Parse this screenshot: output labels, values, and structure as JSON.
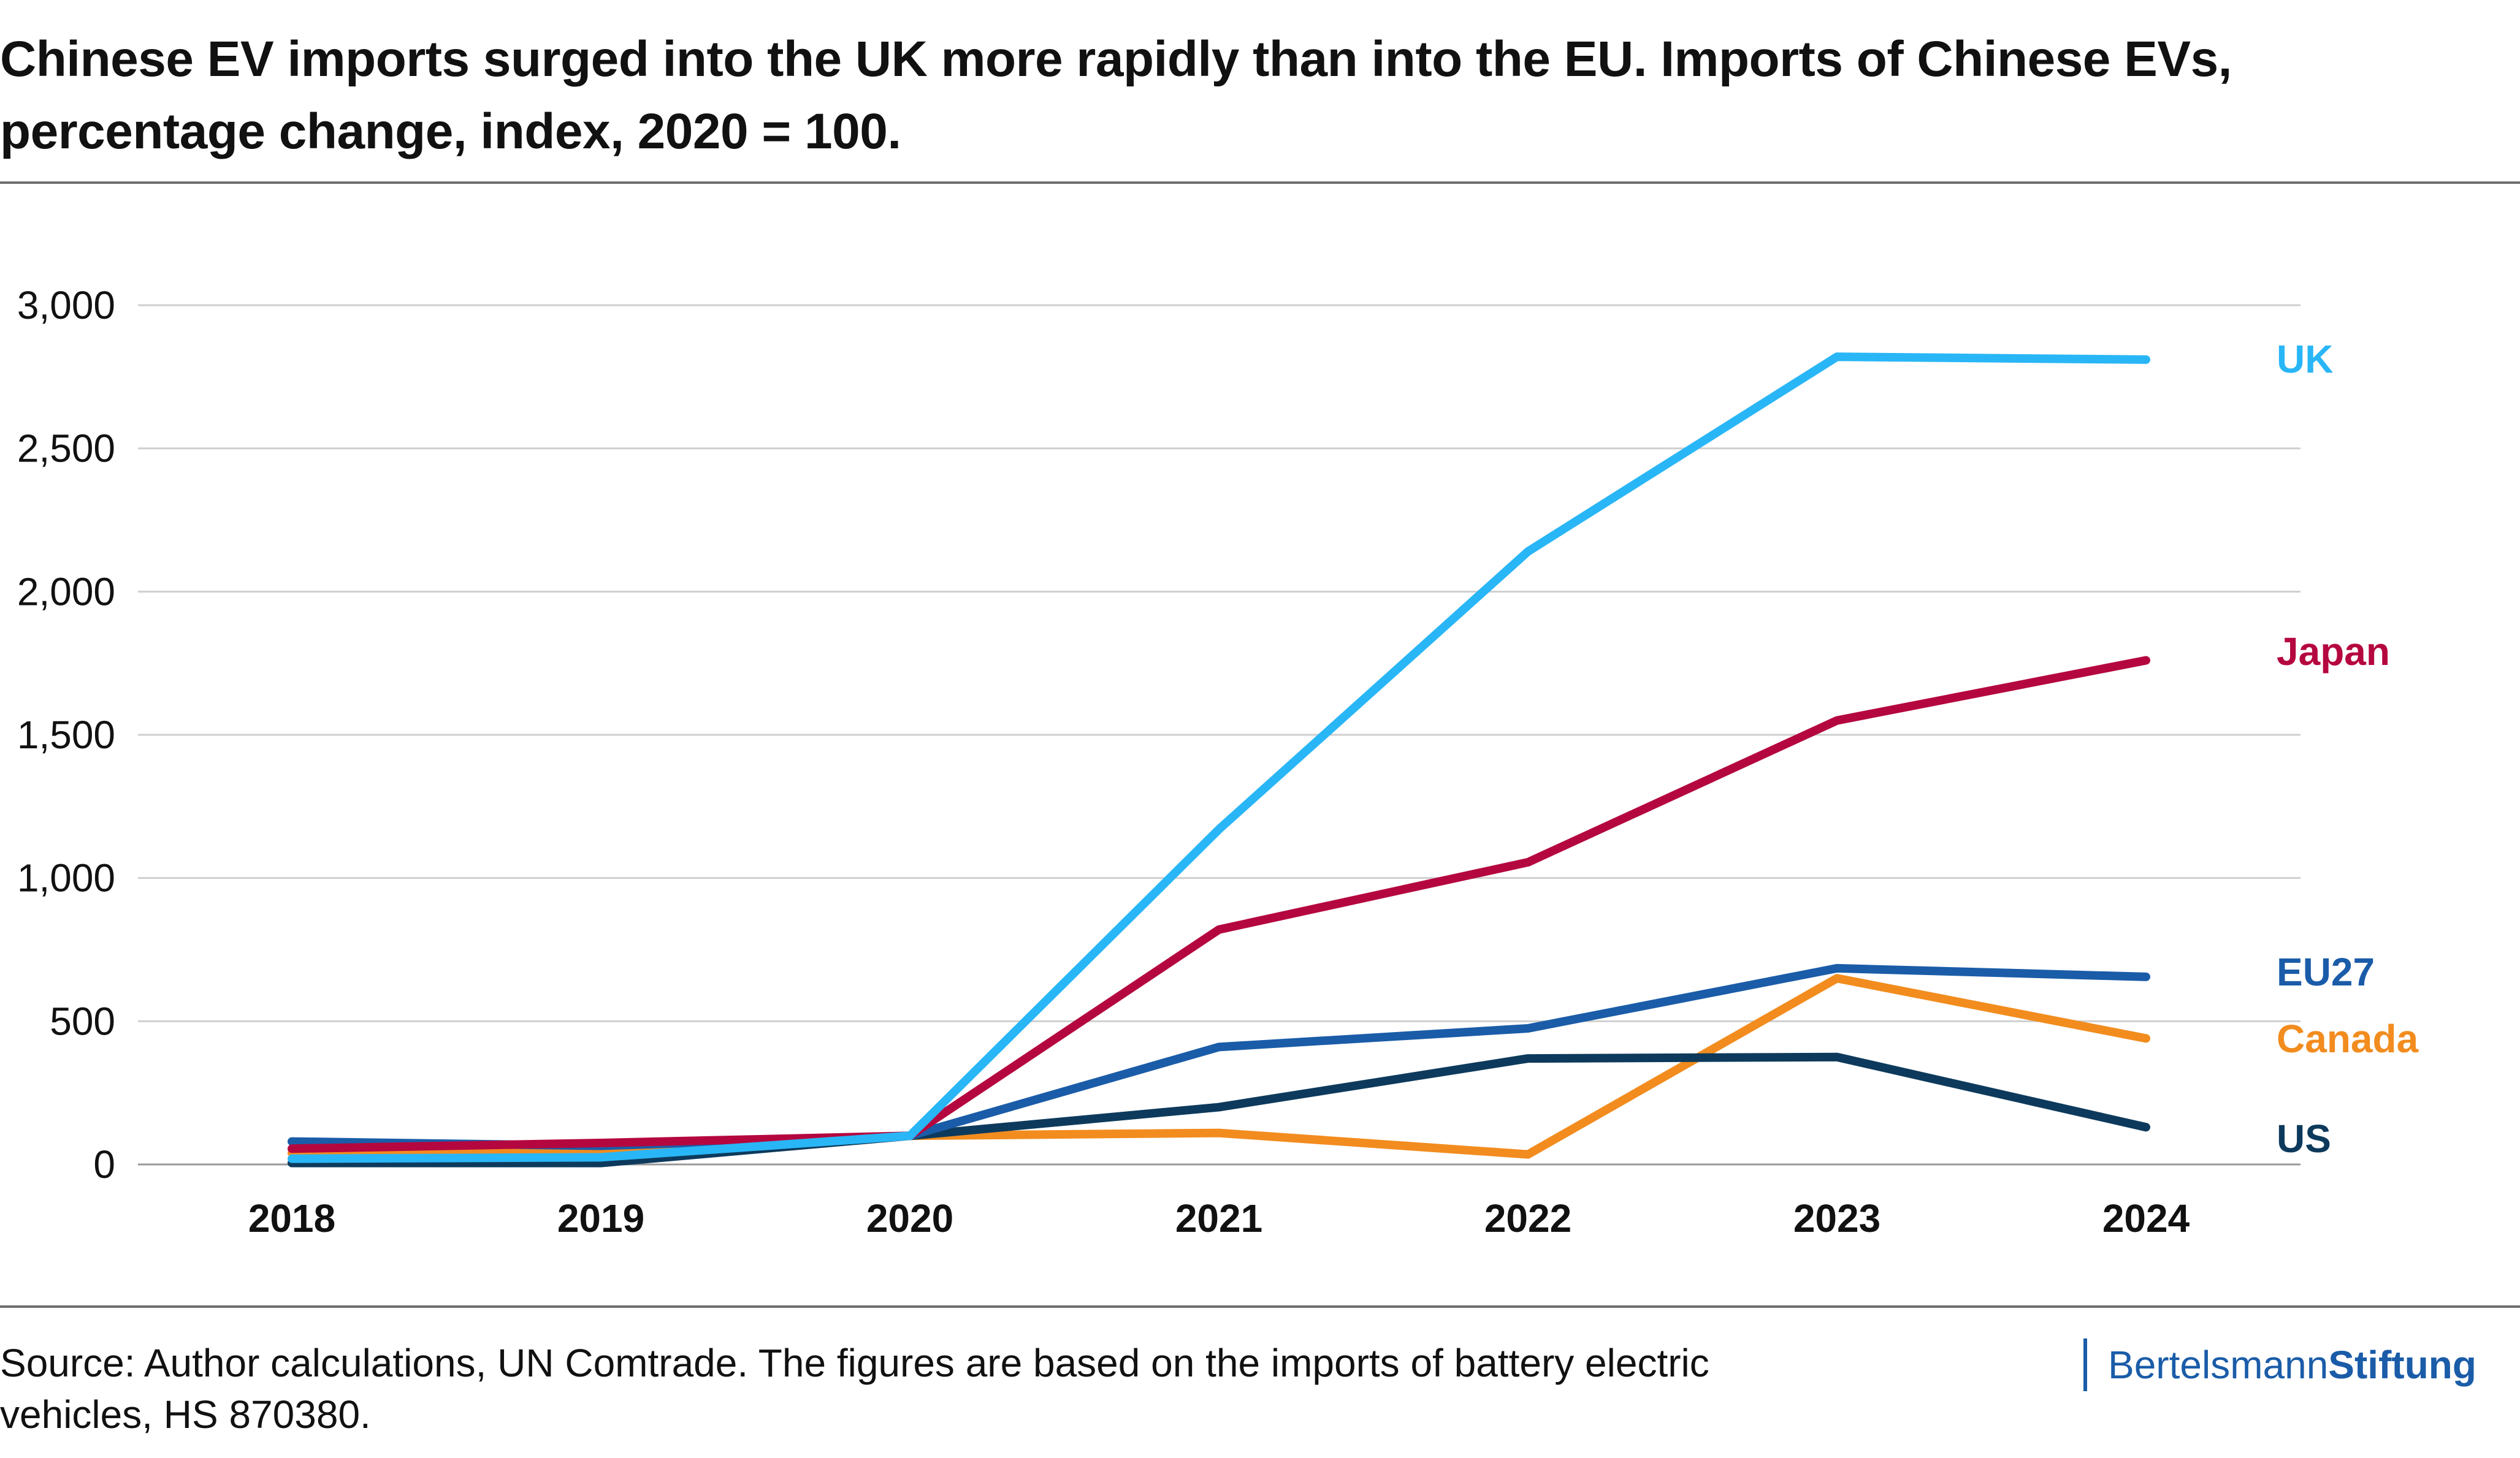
{
  "title": "Chinese EV imports surged into the UK more rapidly than into the EU. Imports of Chinese EVs, percentage change, index, 2020 = 100.",
  "source": "Source: Author calculations, UN Comtrade. The figures are based on the imports of battery electric vehicles, HS 870380.",
  "brand": {
    "part1": "Bertelsmann",
    "part2": "Stiftung",
    "color": "#1a5ca8"
  },
  "chart_data": {
    "type": "line",
    "title": "Chinese EV imports surged into the UK more rapidly than into the EU. Imports of Chinese EVs, percentage change, index, 2020 = 100.",
    "xlabel": "",
    "ylabel": "",
    "x": [
      "2018",
      "2019",
      "2020",
      "2021",
      "2022",
      "2023",
      "2024"
    ],
    "ylim": [
      0,
      3000
    ],
    "yticks": [
      0,
      500,
      1000,
      1500,
      2000,
      2500,
      3000
    ],
    "ytick_labels": [
      "0",
      "500",
      "1,000",
      "1,500",
      "2,000",
      "2,500",
      "3,000"
    ],
    "grid": "horizontal",
    "legend": "direct labels at right end of lines",
    "series": [
      {
        "name": "UK",
        "color": "#29b6f6",
        "values": [
          20,
          25,
          100,
          1170,
          2140,
          2820,
          2810
        ]
      },
      {
        "name": "Japan",
        "color": "#b5073f",
        "values": [
          55,
          75,
          100,
          820,
          1055,
          1550,
          1760
        ]
      },
      {
        "name": "EU27",
        "color": "#1a5ca8",
        "values": [
          80,
          65,
          100,
          410,
          475,
          685,
          655
        ]
      },
      {
        "name": "Canada",
        "color": "#f28c1e",
        "values": [
          40,
          40,
          100,
          110,
          35,
          650,
          440
        ]
      },
      {
        "name": "US",
        "color": "#0d3a5c",
        "values": [
          5,
          5,
          100,
          200,
          370,
          375,
          130
        ]
      }
    ]
  }
}
